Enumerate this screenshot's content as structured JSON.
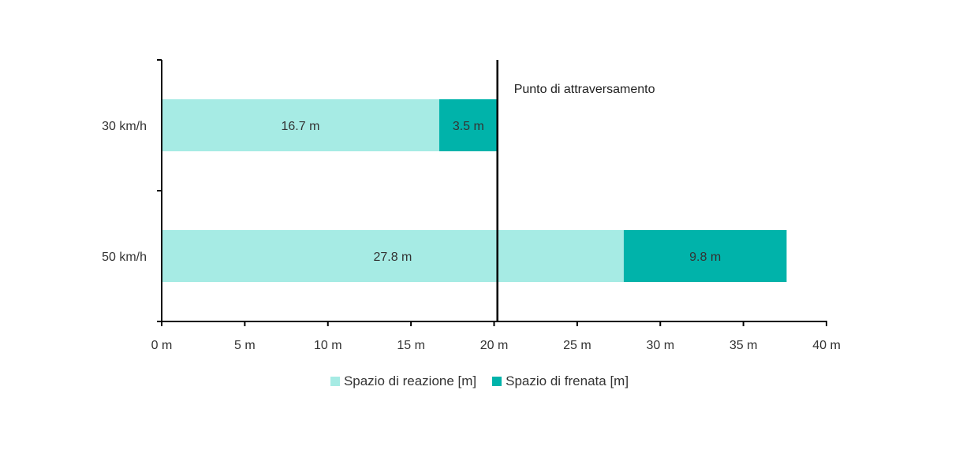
{
  "chart_data": {
    "type": "bar",
    "orientation": "horizontal",
    "stacked": true,
    "categories": [
      "30 km/h",
      "50 km/h"
    ],
    "series": [
      {
        "name": "Spazio di reazione [m]",
        "values": [
          16.7,
          27.8
        ],
        "labels": [
          "16.7 m",
          "27.8 m"
        ],
        "color": "#a6ebe4"
      },
      {
        "name": "Spazio di frenata [m]",
        "values": [
          3.5,
          9.8
        ],
        "labels": [
          "3.5 m",
          "9.8 m"
        ],
        "color": "#00b3aa"
      }
    ],
    "xlim": [
      0,
      40
    ],
    "x_ticks": [
      0,
      5,
      10,
      15,
      20,
      25,
      30,
      35,
      40
    ],
    "x_tick_labels": [
      "0 m",
      "5 m",
      "10 m",
      "15 m",
      "20 m",
      "25 m",
      "30 m",
      "35 m",
      "40 m"
    ],
    "reference_line": {
      "x": 20.2,
      "label": "Punto di attraversamento"
    },
    "grid": false,
    "legend_position": "bottom"
  }
}
